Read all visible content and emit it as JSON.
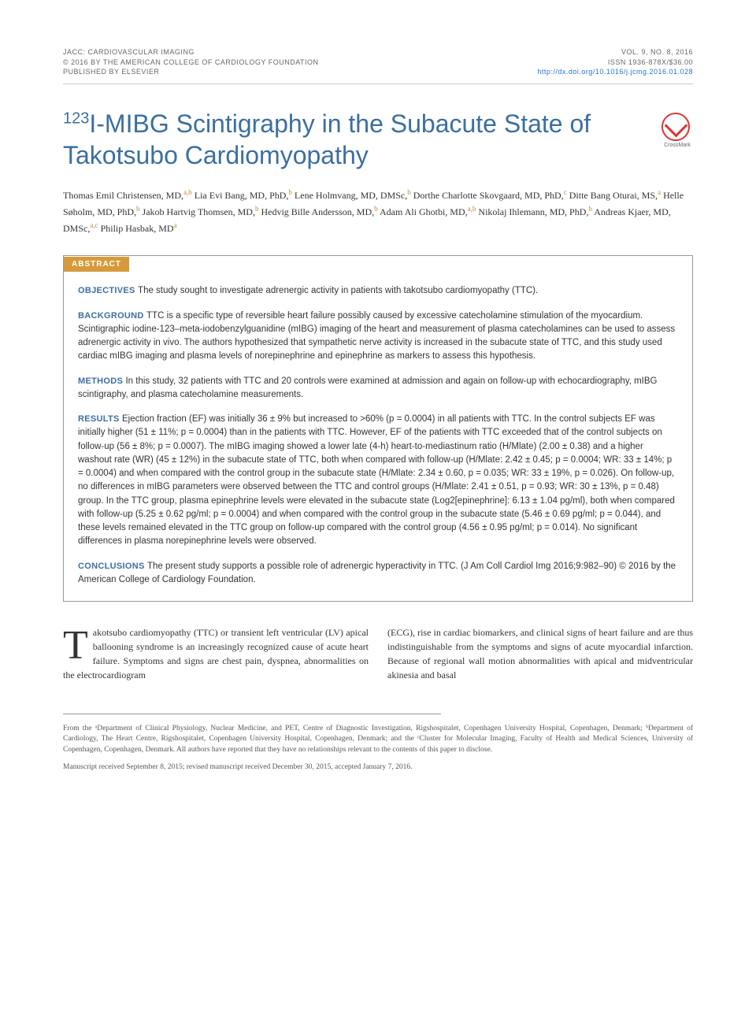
{
  "header": {
    "left": {
      "journal": "JACC: CARDIOVASCULAR IMAGING",
      "copyright": "© 2016 BY THE AMERICAN COLLEGE OF CARDIOLOGY FOUNDATION",
      "publisher": "PUBLISHED BY ELSEVIER"
    },
    "right": {
      "volume": "VOL. 9, NO. 8, 2016",
      "issn": "ISSN 1936-878X/$36.00",
      "doi": "http://dx.doi.org/10.1016/j.jcmg.2016.01.028"
    }
  },
  "title": {
    "sup": "123",
    "main": "I-MIBG Scintigraphy in the Subacute State of Takotsubo Cardiomyopathy"
  },
  "crossmark_label": "CrossMark",
  "authors_html": "Thomas Emil Christensen, MD,<sup>a,b</sup> Lia Evi Bang, MD, PhD,<sup>b</sup> Lene Holmvang, MD, DMSc,<sup>b</sup> Dorthe Charlotte Skovgaard, MD, PhD,<sup>c</sup> Ditte Bang Oturai, MS,<sup>a</sup> Helle Søholm, MD, PhD,<sup>b</sup> Jakob Hartvig Thomsen, MD,<sup>b</sup> Hedvig Bille Andersson, MD,<sup>b</sup> Adam Ali Ghotbi, MD,<sup>a,b</sup> Nikolaj Ihlemann, MD, PhD,<sup>b</sup> Andreas Kjaer, MD, DMSc,<sup>a,c</sup> Philip Hasbak, MD<sup>a</sup>",
  "abstract": {
    "label": "ABSTRACT",
    "sections": [
      {
        "heading": "OBJECTIVES",
        "text": "The study sought to investigate adrenergic activity in patients with takotsubo cardiomyopathy (TTC)."
      },
      {
        "heading": "BACKGROUND",
        "text": "TTC is a specific type of reversible heart failure possibly caused by excessive catecholamine stimulation of the myocardium. Scintigraphic iodine-123–meta-iodobenzylguanidine (mIBG) imaging of the heart and measurement of plasma catecholamines can be used to assess adrenergic activity in vivo. The authors hypothesized that sympathetic nerve activity is increased in the subacute state of TTC, and this study used cardiac mIBG imaging and plasma levels of norepinephrine and epinephrine as markers to assess this hypothesis."
      },
      {
        "heading": "METHODS",
        "text": "In this study, 32 patients with TTC and 20 controls were examined at admission and again on follow-up with echocardiography, mIBG scintigraphy, and plasma catecholamine measurements."
      },
      {
        "heading": "RESULTS",
        "text": "Ejection fraction (EF) was initially 36 ± 9% but increased to >60% (p = 0.0004) in all patients with TTC. In the control subjects EF was initially higher (51 ± 11%; p = 0.0004) than in the patients with TTC. However, EF of the patients with TTC exceeded that of the control subjects on follow-up (56 ± 8%; p = 0.0007). The mIBG imaging showed a lower late (4-h) heart-to-mediastinum ratio (H/Mlate) (2.00 ± 0.38) and a higher washout rate (WR) (45 ± 12%) in the subacute state of TTC, both when compared with follow-up (H/Mlate: 2.42 ± 0.45; p = 0.0004; WR: 33 ± 14%; p = 0.0004) and when compared with the control group in the subacute state (H/Mlate: 2.34 ± 0.60, p = 0.035; WR: 33 ± 19%, p = 0.026). On follow-up, no differences in mIBG parameters were observed between the TTC and control groups (H/Mlate: 2.41 ± 0.51, p = 0.93; WR: 30 ± 13%, p = 0.48) group. In the TTC group, plasma epinephrine levels were elevated in the subacute state (Log2[epinephrine]: 6.13 ± 1.04 pg/ml), both when compared with follow-up (5.25 ± 0.62 pg/ml; p = 0.0004) and when compared with the control group in the subacute state (5.46 ± 0.69 pg/ml; p = 0.044), and these levels remained elevated in the TTC group on follow-up compared with the control group (4.56 ± 0.95 pg/ml; p = 0.014). No significant differences in plasma norepinephrine levels were observed."
      },
      {
        "heading": "CONCLUSIONS",
        "text": "The present study supports a possible role of adrenergic hyperactivity in TTC. (J Am Coll Cardiol Img 2016;9:982–90) © 2016 by the American College of Cardiology Foundation."
      }
    ]
  },
  "body": {
    "col1": "akotsubo cardiomyopathy (TTC) or transient left ventricular (LV) apical ballooning syndrome is an increasingly recognized cause of acute heart failure. Symptoms and signs are chest pain, dyspnea, abnormalities on the electrocardiogram",
    "col2": "(ECG), rise in cardiac biomarkers, and clinical signs of heart failure and are thus indistinguishable from the symptoms and signs of acute myocardial infarction. Because of regional wall motion abnormalities with apical and midventricular akinesia and basal"
  },
  "affiliations": "From the ᵃDepartment of Clinical Physiology, Nuclear Medicine, and PET, Centre of Diagnostic Investigation, Rigshospitalet, Copenhagen University Hospital, Copenhagen, Denmark; ᵇDepartment of Cardiology, The Heart Centre, Rigshospitalet, Copenhagen University Hospital, Copenhagen, Denmark; and the ᶜCluster for Molecular Imaging, Faculty of Health and Medical Sciences, University of Copenhagen, Copenhagen, Denmark. All authors have reported that they have no relationships relevant to the contents of this paper to disclose.",
  "manuscript": "Manuscript received September 8, 2015; revised manuscript received December 30, 2015, accepted January 7, 2016.",
  "colors": {
    "accent_blue": "#3b6fa0",
    "accent_orange": "#d69a3a",
    "link_blue": "#2277cc",
    "crossmark_red": "#d93636"
  }
}
